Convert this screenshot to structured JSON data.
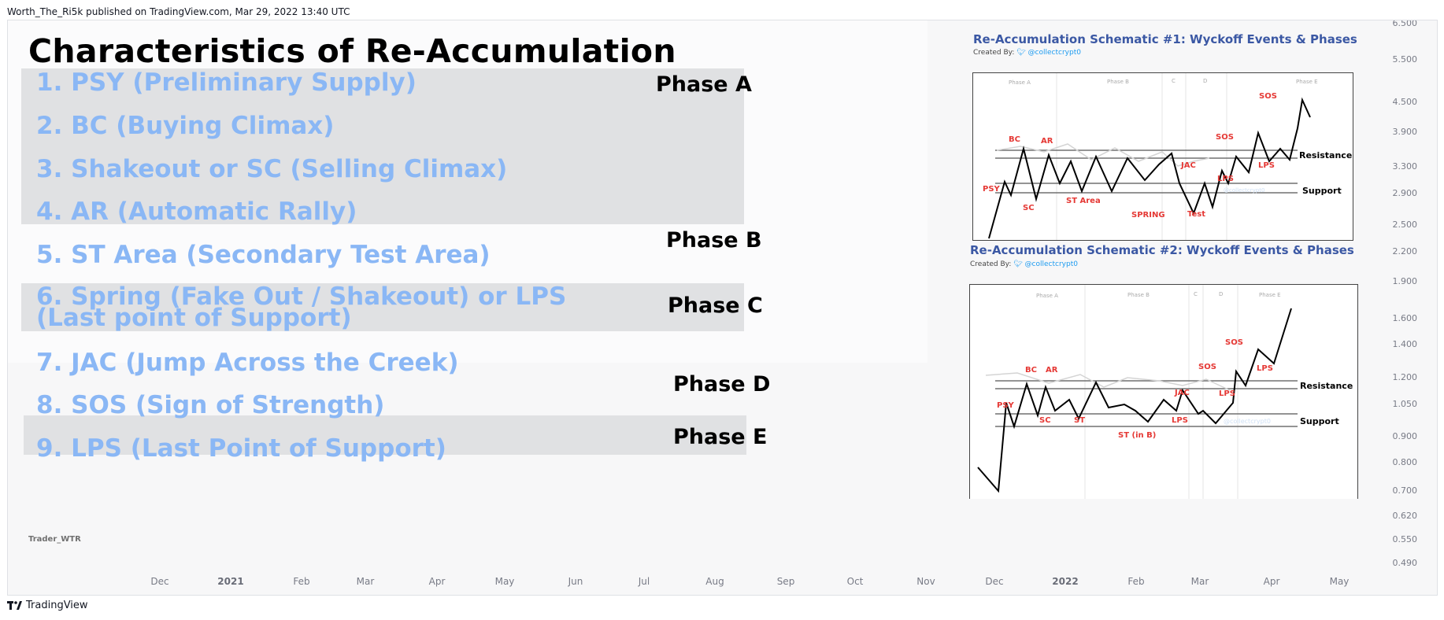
{
  "publisher_line": "Worth_The_Ri5k published on TradingView.com, Mar 29, 2022 13:40 UTC",
  "title": "Characteristics of Re-Accumulation",
  "items": [
    "1. PSY (Preliminary Supply)",
    "2. BC (Buying Climax)",
    "3. Shakeout or SC (Selling Climax)",
    "4. AR (Automatic Rally)",
    "5. ST Area (Secondary Test Area)",
    "6. Spring (Fake Out / Shakeout) or LPS (Last point of Support)",
    "7. JAC (Jump Across the Creek)",
    "8. SOS (Sign of Strength)",
    "9. LPS (Last Point of Support)"
  ],
  "phases": [
    "Phase A",
    "Phase B",
    "Phase C",
    "Phase D",
    "Phase E"
  ],
  "watermark": "Trader_WTR",
  "y_axis_ticks": [
    "6.500",
    "5.500",
    "4.500",
    "3.900",
    "3.300",
    "2.900",
    "2.500",
    "2.200",
    "1.900",
    "1.600",
    "1.400",
    "1.200",
    "1.050",
    "0.900",
    "0.800",
    "0.700",
    "0.620",
    "0.550",
    "0.490"
  ],
  "x_axis_ticks": [
    {
      "label": "Dec",
      "bold": false
    },
    {
      "label": "2021",
      "bold": true
    },
    {
      "label": "Feb",
      "bold": false
    },
    {
      "label": "Mar",
      "bold": false
    },
    {
      "label": "Apr",
      "bold": false
    },
    {
      "label": "May",
      "bold": false
    },
    {
      "label": "Jun",
      "bold": false
    },
    {
      "label": "Jul",
      "bold": false
    },
    {
      "label": "Aug",
      "bold": false
    },
    {
      "label": "Sep",
      "bold": false
    },
    {
      "label": "Oct",
      "bold": false
    },
    {
      "label": "Nov",
      "bold": false
    },
    {
      "label": "Dec",
      "bold": false
    },
    {
      "label": "2022",
      "bold": true
    },
    {
      "label": "Feb",
      "bold": false
    },
    {
      "label": "Mar",
      "bold": false
    },
    {
      "label": "Apr",
      "bold": false
    },
    {
      "label": "May",
      "bold": false
    }
  ],
  "schematic1": {
    "title": "Re-Accumulation Schematic #1: Wyckoff Events & Phases",
    "created_by": "Created By:",
    "handle": "@collectcrypt0",
    "phase_labels": [
      "Phase A",
      "Phase B",
      "C",
      "D",
      "Phase E"
    ],
    "events": [
      "BC",
      "AR",
      "PSY",
      "SC",
      "ST Area",
      "SPRING",
      "Test",
      "JAC",
      "LPS",
      "SOS",
      "LPS",
      "SOS"
    ],
    "resistance": "Resistance",
    "support": "Support",
    "watermark": "@collectcrypt0"
  },
  "schematic2": {
    "title": "Re-Accumulation Schematic #2: Wyckoff Events & Phases",
    "created_by": "Created By:",
    "handle": "@collectcrypt0",
    "phase_labels": [
      "Phase A",
      "Phase B",
      "C",
      "D",
      "Phase E"
    ],
    "events": [
      "BC",
      "AR",
      "PSY",
      "SC",
      "ST",
      "ST (in B)",
      "JAC",
      "LPS",
      "SOS",
      "LPS",
      "SOS",
      "LPS"
    ],
    "resistance": "Resistance",
    "support": "Support",
    "watermark": "@collectcrypt0"
  },
  "logo_text": "TradingView",
  "colors": {
    "item_text": "#8ab7f5",
    "band": "#e0e1e3",
    "event_red": "#e53935",
    "schematic_title": "#3b58a4"
  }
}
